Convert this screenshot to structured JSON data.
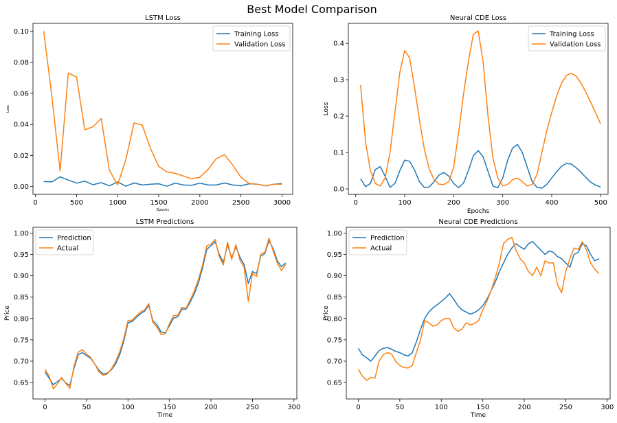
{
  "figure": {
    "title": "Best Model Comparison"
  },
  "colors": {
    "series_1": "#1f77b4",
    "series_2": "#ff7f0e"
  },
  "chart_data": [
    {
      "type": "line",
      "title": "LSTM Loss",
      "xlabel": "Epochs",
      "ylabel": "Loss",
      "xlim": [
        -30,
        3130
      ],
      "ylim": [
        -0.005,
        0.105
      ],
      "xticks": [
        0,
        500,
        1000,
        1500,
        2000,
        2500,
        3000
      ],
      "yticks": [
        0.0,
        0.02,
        0.04,
        0.06,
        0.08,
        0.1
      ],
      "ytick_labels": [
        "0.00",
        "0.02",
        "0.04",
        "0.06",
        "0.08",
        "0.10"
      ],
      "legend": "top-right",
      "series": [
        {
          "name": "Training Loss",
          "color": "#1f77b4",
          "x": [
            100,
            200,
            300,
            400,
            500,
            600,
            700,
            800,
            900,
            1000,
            1100,
            1200,
            1300,
            1400,
            1500,
            1600,
            1700,
            1800,
            1900,
            2000,
            2100,
            2200,
            2300,
            2400,
            2500,
            2600,
            2700,
            2800,
            2900,
            3000
          ],
          "y": [
            0.0032,
            0.003,
            0.0062,
            0.0042,
            0.0022,
            0.0035,
            0.0012,
            0.0025,
            0.0005,
            0.003,
            0.0002,
            0.0023,
            0.001,
            0.0015,
            0.0018,
            0.0002,
            0.0022,
            0.001,
            0.0008,
            0.0022,
            0.001,
            0.001,
            0.0023,
            0.001,
            0.0005,
            0.0018,
            0.0015,
            0.0005,
            0.0015,
            0.002
          ]
        },
        {
          "name": "Validation Loss",
          "color": "#ff7f0e",
          "x": [
            100,
            200,
            300,
            400,
            500,
            600,
            700,
            800,
            900,
            1000,
            1100,
            1200,
            1300,
            1400,
            1500,
            1600,
            1700,
            1800,
            1900,
            2000,
            2100,
            2200,
            2300,
            2400,
            2500,
            2600,
            2700,
            2800,
            2900,
            3000
          ],
          "y": [
            0.1,
            0.058,
            0.01,
            0.073,
            0.0705,
            0.0365,
            0.0385,
            0.0438,
            0.0105,
            0.001,
            0.0175,
            0.041,
            0.0395,
            0.0245,
            0.013,
            0.0095,
            0.0085,
            0.0068,
            0.005,
            0.006,
            0.011,
            0.018,
            0.0205,
            0.0138,
            0.006,
            0.002,
            0.0015,
            0.0005,
            0.0015,
            0.0015
          ]
        }
      ]
    },
    {
      "type": "line",
      "title": "Neural CDE Loss",
      "xlabel": "Epochs",
      "ylabel": "Loss",
      "xlim": [
        -15,
        515
      ],
      "ylim": [
        -0.015,
        0.455
      ],
      "xticks": [
        0,
        100,
        200,
        300,
        400,
        500
      ],
      "yticks": [
        0.0,
        0.1,
        0.2,
        0.3,
        0.4
      ],
      "ytick_labels": [
        "0.0",
        "0.1",
        "0.2",
        "0.3",
        "0.4"
      ],
      "legend": "top-right",
      "series": [
        {
          "name": "Training Loss",
          "color": "#1f77b4",
          "x": [
            10,
            20,
            30,
            40,
            50,
            60,
            70,
            80,
            90,
            100,
            110,
            120,
            130,
            140,
            150,
            160,
            170,
            180,
            190,
            200,
            210,
            220,
            230,
            240,
            250,
            260,
            270,
            280,
            290,
            300,
            310,
            320,
            330,
            340,
            350,
            360,
            370,
            380,
            390,
            400,
            410,
            420,
            430,
            440,
            450,
            460,
            470,
            480,
            490,
            500
          ],
          "y": [
            0.028,
            0.006,
            0.015,
            0.053,
            0.061,
            0.035,
            0.004,
            0.015,
            0.05,
            0.079,
            0.076,
            0.052,
            0.02,
            0.004,
            0.005,
            0.02,
            0.038,
            0.045,
            0.035,
            0.015,
            0.003,
            0.016,
            0.05,
            0.091,
            0.105,
            0.088,
            0.048,
            0.008,
            0.003,
            0.03,
            0.078,
            0.112,
            0.122,
            0.1,
            0.06,
            0.02,
            0.004,
            0.002,
            0.012,
            0.03,
            0.047,
            0.062,
            0.07,
            0.068,
            0.058,
            0.045,
            0.031,
            0.018,
            0.01,
            0.005
          ]
        },
        {
          "name": "Validation Loss",
          "color": "#ff7f0e",
          "x": [
            10,
            20,
            30,
            40,
            50,
            60,
            70,
            80,
            90,
            100,
            110,
            120,
            130,
            140,
            150,
            160,
            170,
            180,
            190,
            200,
            210,
            220,
            230,
            240,
            250,
            260,
            270,
            280,
            290,
            300,
            310,
            320,
            330,
            340,
            350,
            360,
            370,
            380,
            390,
            400,
            410,
            420,
            430,
            440,
            450,
            460,
            470,
            480,
            490,
            500
          ],
          "y": [
            0.285,
            0.13,
            0.05,
            0.015,
            0.008,
            0.03,
            0.1,
            0.21,
            0.32,
            0.38,
            0.36,
            0.28,
            0.19,
            0.11,
            0.055,
            0.025,
            0.013,
            0.012,
            0.02,
            0.06,
            0.155,
            0.26,
            0.35,
            0.425,
            0.434,
            0.35,
            0.2,
            0.085,
            0.03,
            0.008,
            0.012,
            0.025,
            0.03,
            0.02,
            0.008,
            0.012,
            0.04,
            0.1,
            0.16,
            0.21,
            0.255,
            0.29,
            0.312,
            0.318,
            0.31,
            0.29,
            0.265,
            0.237,
            0.208,
            0.178
          ]
        }
      ]
    },
    {
      "type": "line",
      "title": "LSTM Predictions",
      "xlabel": "Time",
      "ylabel": "Price",
      "xlim": [
        -14.5,
        303.5
      ],
      "ylim": [
        0.6115,
        1.0135
      ],
      "xticks": [
        0,
        50,
        100,
        150,
        200,
        250,
        300
      ],
      "yticks": [
        0.65,
        0.7,
        0.75,
        0.8,
        0.85,
        0.9,
        0.95,
        1.0
      ],
      "ytick_labels": [
        "0.65",
        "0.70",
        "0.75",
        "0.80",
        "0.85",
        "0.90",
        "0.95",
        "1.00"
      ],
      "legend": "top-left",
      "x_step": 5,
      "series": [
        {
          "name": "Prediction",
          "color": "#1f77b4",
          "y": [
            0.675,
            0.66,
            0.645,
            0.652,
            0.66,
            0.649,
            0.643,
            0.684,
            0.715,
            0.72,
            0.713,
            0.707,
            0.693,
            0.679,
            0.67,
            0.672,
            0.68,
            0.693,
            0.715,
            0.747,
            0.79,
            0.793,
            0.802,
            0.811,
            0.817,
            0.831,
            0.795,
            0.785,
            0.768,
            0.766,
            0.783,
            0.801,
            0.804,
            0.822,
            0.822,
            0.838,
            0.858,
            0.884,
            0.919,
            0.962,
            0.97,
            0.98,
            0.95,
            0.931,
            0.973,
            0.942,
            0.968,
            0.943,
            0.926,
            0.882,
            0.91,
            0.905,
            0.946,
            0.952,
            0.983,
            0.963,
            0.935,
            0.921,
            0.93
          ]
        },
        {
          "name": "Actual",
          "color": "#ff7f0e",
          "y": [
            0.681,
            0.665,
            0.635,
            0.647,
            0.662,
            0.648,
            0.636,
            0.689,
            0.721,
            0.727,
            0.717,
            0.709,
            0.693,
            0.675,
            0.667,
            0.67,
            0.682,
            0.699,
            0.722,
            0.753,
            0.795,
            0.796,
            0.806,
            0.815,
            0.82,
            0.835,
            0.79,
            0.78,
            0.762,
            0.764,
            0.788,
            0.807,
            0.807,
            0.826,
            0.824,
            0.843,
            0.865,
            0.892,
            0.926,
            0.97,
            0.974,
            0.985,
            0.945,
            0.925,
            0.979,
            0.938,
            0.973,
            0.936,
            0.92,
            0.84,
            0.906,
            0.898,
            0.951,
            0.955,
            0.988,
            0.958,
            0.93,
            0.912,
            0.927
          ]
        }
      ]
    },
    {
      "type": "line",
      "title": "Neural CDE Predictions",
      "xlabel": "Time",
      "ylabel": "Price",
      "xlim": [
        -14.5,
        303.5
      ],
      "ylim": [
        0.6115,
        1.0135
      ],
      "xticks": [
        0,
        50,
        100,
        150,
        200,
        250,
        300
      ],
      "yticks": [
        0.65,
        0.7,
        0.75,
        0.8,
        0.85,
        0.9,
        0.95,
        1.0
      ],
      "ytick_labels": [
        "0.65",
        "0.70",
        "0.75",
        "0.80",
        "0.85",
        "0.90",
        "0.95",
        "1.00"
      ],
      "legend": "top-left",
      "x_step": 5,
      "series": [
        {
          "name": "Prediction",
          "color": "#1f77b4",
          "y": [
            0.73,
            0.715,
            0.708,
            0.7,
            0.712,
            0.725,
            0.73,
            0.732,
            0.728,
            0.723,
            0.72,
            0.715,
            0.712,
            0.72,
            0.745,
            0.775,
            0.8,
            0.815,
            0.825,
            0.832,
            0.84,
            0.848,
            0.858,
            0.845,
            0.83,
            0.82,
            0.815,
            0.81,
            0.814,
            0.82,
            0.83,
            0.845,
            0.865,
            0.885,
            0.91,
            0.93,
            0.95,
            0.965,
            0.975,
            0.968,
            0.962,
            0.975,
            0.98,
            0.97,
            0.96,
            0.95,
            0.958,
            0.955,
            0.945,
            0.94,
            0.93,
            0.92,
            0.95,
            0.955,
            0.975,
            0.97,
            0.95,
            0.935,
            0.94
          ]
        },
        {
          "name": "Actual",
          "color": "#ff7f0e",
          "y": [
            0.681,
            0.665,
            0.655,
            0.662,
            0.66,
            0.7,
            0.715,
            0.72,
            0.717,
            0.7,
            0.69,
            0.685,
            0.684,
            0.69,
            0.72,
            0.75,
            0.795,
            0.79,
            0.782,
            0.785,
            0.795,
            0.8,
            0.8,
            0.778,
            0.77,
            0.775,
            0.79,
            0.785,
            0.788,
            0.795,
            0.82,
            0.84,
            0.865,
            0.895,
            0.93,
            0.975,
            0.985,
            0.99,
            0.96,
            0.94,
            0.93,
            0.91,
            0.9,
            0.92,
            0.9,
            0.935,
            0.93,
            0.93,
            0.88,
            0.86,
            0.91,
            0.94,
            0.965,
            0.962,
            0.98,
            0.96,
            0.93,
            0.915,
            0.905
          ]
        }
      ]
    }
  ]
}
